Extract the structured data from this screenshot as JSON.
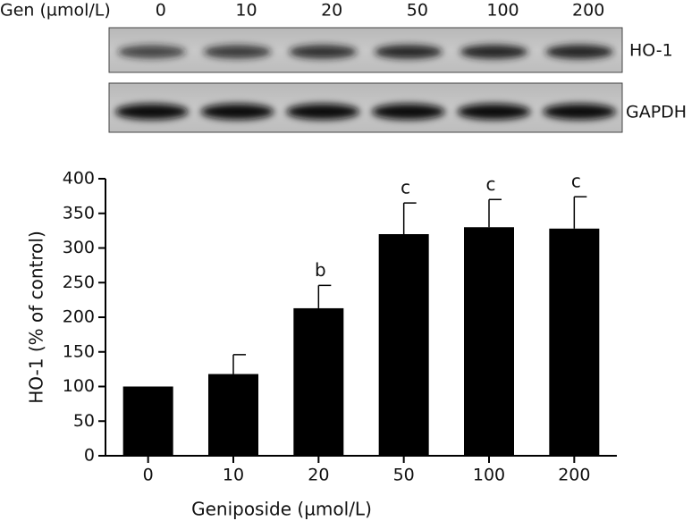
{
  "blot": {
    "header": "Gen (µmol/L)",
    "lanes": [
      "0",
      "10",
      "20",
      "50",
      "100",
      "200"
    ],
    "bands": [
      "HO-1",
      "GAPDH"
    ]
  },
  "chart_data": {
    "type": "bar",
    "x_label": "Geniposide (µmol/L)",
    "y_label": "HO-1 (% of control)",
    "categories": [
      "0",
      "10",
      "20",
      "50",
      "100",
      "200"
    ],
    "values": [
      100,
      118,
      213,
      320,
      330,
      328
    ],
    "errors": [
      0,
      28,
      33,
      45,
      40,
      46
    ],
    "significance": [
      null,
      null,
      "b",
      "c",
      "c",
      "c"
    ],
    "color": "#000000",
    "ylim": [
      0,
      400
    ],
    "yticks": [
      0,
      50,
      100,
      150,
      200,
      250,
      300,
      350,
      400
    ]
  }
}
